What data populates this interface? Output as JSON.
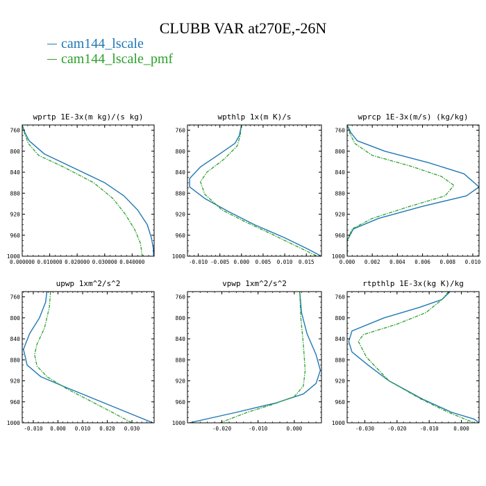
{
  "figure": {
    "title": "CLUBB VAR at270E,-26N",
    "legend": [
      {
        "label": "cam144_lscale",
        "color": "#1f77b4"
      },
      {
        "label": "cam144_lscale_pmf",
        "color": "#2ca02c"
      }
    ]
  },
  "chart_data": [
    {
      "type": "line",
      "title": "wprtp  1E-3x(m kg)/(s kg)",
      "xlim": [
        0.0,
        0.048
      ],
      "ylim": [
        750,
        1000
      ],
      "y_inverted": true,
      "xticks": [
        0.0,
        0.01,
        0.02,
        0.03,
        0.04
      ],
      "xtick_labels": [
        "0.000000",
        "0.010000",
        "0.020000",
        "0.030000",
        "0.040000"
      ],
      "yticks": [
        760,
        800,
        840,
        880,
        920,
        960,
        1000
      ],
      "grid": false,
      "series": [
        {
          "name": "cam144_lscale",
          "color": "#1f77b4",
          "dash": "solid",
          "points": [
            [
              0.0,
              750
            ],
            [
              0.001,
              765
            ],
            [
              0.0025,
              780
            ],
            [
              0.008,
              805
            ],
            [
              0.02,
              835
            ],
            [
              0.03,
              860
            ],
            [
              0.037,
              885
            ],
            [
              0.042,
              912
            ],
            [
              0.0455,
              940
            ],
            [
              0.047,
              965
            ],
            [
              0.0477,
              985
            ],
            [
              0.0478,
              1000
            ]
          ]
        },
        {
          "name": "cam144_lscale_pmf",
          "color": "#2ca02c",
          "dash": "dashdot",
          "points": [
            [
              0.0,
              750
            ],
            [
              0.0008,
              765
            ],
            [
              0.0022,
              785
            ],
            [
              0.006,
              808
            ],
            [
              0.015,
              830
            ],
            [
              0.026,
              860
            ],
            [
              0.033,
              890
            ],
            [
              0.0375,
              920
            ],
            [
              0.041,
              950
            ],
            [
              0.043,
              975
            ],
            [
              0.0437,
              1000
            ]
          ]
        }
      ]
    },
    {
      "type": "line",
      "title": "wpthlp  1x(m K)/s",
      "xlim": [
        -0.0125,
        0.0185
      ],
      "ylim": [
        750,
        1000
      ],
      "y_inverted": true,
      "xticks": [
        -0.01,
        -0.005,
        0.0,
        0.005,
        0.01,
        0.015
      ],
      "xtick_labels": [
        "-0.010",
        "-0.005",
        "0.000",
        "0.005",
        "0.010",
        "0.015"
      ],
      "yticks": [
        760,
        800,
        840,
        880,
        920,
        960,
        1000
      ],
      "grid": false,
      "series": [
        {
          "name": "cam144_lscale",
          "color": "#1f77b4",
          "dash": "solid",
          "points": [
            [
              0.0,
              750
            ],
            [
              -0.0005,
              770
            ],
            [
              -0.0015,
              785
            ],
            [
              -0.005,
              805
            ],
            [
              -0.0095,
              830
            ],
            [
              -0.012,
              852
            ],
            [
              -0.012,
              868
            ],
            [
              -0.0085,
              890
            ],
            [
              -0.003,
              915
            ],
            [
              0.003,
              940
            ],
            [
              0.01,
              965
            ],
            [
              0.015,
              985
            ],
            [
              0.0185,
              1000
            ]
          ]
        },
        {
          "name": "cam144_lscale_pmf",
          "color": "#2ca02c",
          "dash": "dashdot",
          "points": [
            [
              0.0,
              750
            ],
            [
              -0.0003,
              770
            ],
            [
              -0.001,
              790
            ],
            [
              -0.004,
              815
            ],
            [
              -0.008,
              840
            ],
            [
              -0.0095,
              858
            ],
            [
              -0.0085,
              882
            ],
            [
              -0.0045,
              912
            ],
            [
              0.001,
              935
            ],
            [
              0.007,
              958
            ],
            [
              0.012,
              978
            ],
            [
              0.0175,
              1000
            ]
          ]
        }
      ]
    },
    {
      "type": "line",
      "title": "wprcp  1E-3x(m/s) (kg/kg)",
      "xlim": [
        0.0,
        0.0105
      ],
      "ylim": [
        750,
        1000
      ],
      "y_inverted": true,
      "xticks": [
        0.0,
        0.002,
        0.004,
        0.006,
        0.008,
        0.01
      ],
      "xtick_labels": [
        "0.000",
        "0.002",
        "0.004",
        "0.006",
        "0.008",
        "0.010"
      ],
      "yticks": [
        760,
        800,
        840,
        880,
        920,
        960,
        1000
      ],
      "grid": false,
      "series": [
        {
          "name": "cam144_lscale",
          "color": "#1f77b4",
          "dash": "solid",
          "points": [
            [
              0.0,
              750
            ],
            [
              0.0003,
              765
            ],
            [
              0.0008,
              780
            ],
            [
              0.003,
              800
            ],
            [
              0.0065,
              822
            ],
            [
              0.0093,
              843
            ],
            [
              0.0105,
              868
            ],
            [
              0.0095,
              885
            ],
            [
              0.006,
              905
            ],
            [
              0.0025,
              928
            ],
            [
              0.0005,
              948
            ],
            [
              0.0,
              970
            ],
            [
              0.0,
              1000
            ]
          ]
        },
        {
          "name": "cam144_lscale_pmf",
          "color": "#2ca02c",
          "dash": "dashdot",
          "points": [
            [
              0.0,
              750
            ],
            [
              0.0002,
              765
            ],
            [
              0.0006,
              785
            ],
            [
              0.002,
              808
            ],
            [
              0.005,
              828
            ],
            [
              0.0075,
              848
            ],
            [
              0.0085,
              865
            ],
            [
              0.0078,
              885
            ],
            [
              0.005,
              905
            ],
            [
              0.002,
              928
            ],
            [
              0.0004,
              948
            ],
            [
              0.0,
              970
            ],
            [
              0.0,
              1000
            ]
          ]
        }
      ]
    },
    {
      "type": "line",
      "title": "upwp  1xm^2/s^2",
      "xlim": [
        -0.0145,
        0.039
      ],
      "ylim": [
        750,
        1000
      ],
      "y_inverted": true,
      "xticks": [
        -0.01,
        0.0,
        0.01,
        0.02,
        0.03
      ],
      "xtick_labels": [
        "-0.010",
        "0.000",
        "0.010",
        "0.020",
        "0.030"
      ],
      "yticks": [
        760,
        800,
        840,
        880,
        920,
        960,
        1000
      ],
      "grid": false,
      "series": [
        {
          "name": "cam144_lscale",
          "color": "#1f77b4",
          "dash": "solid",
          "points": [
            [
              -0.0045,
              750
            ],
            [
              -0.005,
              770
            ],
            [
              -0.0075,
              800
            ],
            [
              -0.0115,
              830
            ],
            [
              -0.014,
              860
            ],
            [
              -0.0125,
              890
            ],
            [
              -0.007,
              912
            ],
            [
              0.003,
              932
            ],
            [
              0.015,
              955
            ],
            [
              0.027,
              978
            ],
            [
              0.0385,
              1000
            ]
          ]
        },
        {
          "name": "cam144_lscale_pmf",
          "color": "#2ca02c",
          "dash": "dashdot",
          "points": [
            [
              -0.003,
              750
            ],
            [
              -0.0035,
              780
            ],
            [
              -0.0055,
              820
            ],
            [
              -0.0085,
              850
            ],
            [
              -0.0095,
              870
            ],
            [
              -0.0085,
              892
            ],
            [
              -0.0045,
              912
            ],
            [
              0.0035,
              935
            ],
            [
              0.013,
              958
            ],
            [
              0.022,
              980
            ],
            [
              0.03,
              1000
            ]
          ]
        }
      ]
    },
    {
      "type": "line",
      "title": "vpwp  1xm^2/s^2",
      "xlim": [
        -0.0295,
        0.0075
      ],
      "ylim": [
        750,
        1000
      ],
      "y_inverted": true,
      "xticks": [
        -0.02,
        -0.01,
        0.0
      ],
      "xtick_labels": [
        "-0.020",
        "-0.010",
        "0.000"
      ],
      "yticks": [
        760,
        800,
        840,
        880,
        920,
        960,
        1000
      ],
      "grid": false,
      "series": [
        {
          "name": "cam144_lscale",
          "color": "#1f77b4",
          "dash": "solid",
          "points": [
            [
              0.0015,
              750
            ],
            [
              0.002,
              790
            ],
            [
              0.0035,
              830
            ],
            [
              0.006,
              870
            ],
            [
              0.0072,
              900
            ],
            [
              0.006,
              925
            ],
            [
              0.0025,
              945
            ],
            [
              -0.005,
              962
            ],
            [
              -0.016,
              980
            ],
            [
              -0.029,
              1000
            ]
          ]
        },
        {
          "name": "cam144_lscale_pmf",
          "color": "#2ca02c",
          "dash": "dashdot",
          "points": [
            [
              0.0015,
              750
            ],
            [
              0.0018,
              800
            ],
            [
              0.0025,
              850
            ],
            [
              0.003,
              900
            ],
            [
              0.0025,
              930
            ],
            [
              0.0,
              950
            ],
            [
              -0.006,
              965
            ],
            [
              -0.013,
              980
            ],
            [
              -0.0205,
              1000
            ]
          ]
        }
      ]
    },
    {
      "type": "line",
      "title": "rtpthlp  1E-3x(kg K)/kg",
      "xlim": [
        -0.0355,
        0.0055
      ],
      "ylim": [
        750,
        1000
      ],
      "y_inverted": true,
      "xticks": [
        -0.03,
        -0.02,
        -0.01,
        0.0
      ],
      "xtick_labels": [
        "-0.030",
        "-0.020",
        "-0.010",
        "0.000"
      ],
      "yticks": [
        760,
        800,
        840,
        880,
        920,
        960,
        1000
      ],
      "grid": false,
      "series": [
        {
          "name": "cam144_lscale",
          "color": "#1f77b4",
          "dash": "solid",
          "points": [
            [
              -0.0035,
              750
            ],
            [
              -0.006,
              765
            ],
            [
              -0.013,
              780
            ],
            [
              -0.024,
              800
            ],
            [
              -0.034,
              825
            ],
            [
              -0.035,
              845
            ],
            [
              -0.034,
              865
            ],
            [
              -0.029,
              890
            ],
            [
              -0.0225,
              920
            ],
            [
              -0.012,
              955
            ],
            [
              -0.003,
              980
            ],
            [
              0.004,
              993
            ],
            [
              0.0055,
              1000
            ]
          ]
        },
        {
          "name": "cam144_lscale_pmf",
          "color": "#2ca02c",
          "dash": "dashdot",
          "points": [
            [
              -0.004,
              750
            ],
            [
              -0.006,
              765
            ],
            [
              -0.011,
              790
            ],
            [
              -0.02,
              812
            ],
            [
              -0.0305,
              832
            ],
            [
              -0.032,
              845
            ],
            [
              -0.0295,
              875
            ],
            [
              -0.0225,
              920
            ],
            [
              -0.0125,
              955
            ],
            [
              -0.004,
              980
            ],
            [
              0.004,
              1000
            ]
          ]
        }
      ]
    }
  ]
}
